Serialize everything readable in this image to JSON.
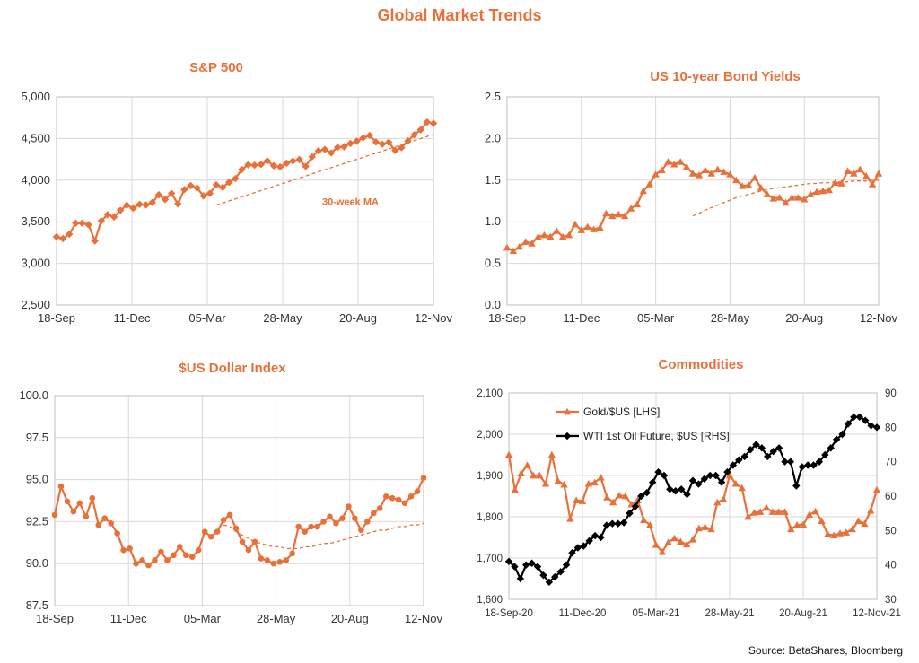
{
  "page": {
    "title": "Global Market Trends",
    "source": "Source: BetaShares, Bloomberg"
  },
  "colors": {
    "orange": "#e8713a",
    "black": "#000000",
    "grid": "#d9d9d9",
    "title": "#e8713a"
  },
  "chart_data": [
    {
      "id": "sp500",
      "type": "line",
      "title": "S&P 500",
      "xlabel": "",
      "ylabel": "",
      "x_ticks": [
        "18-Sep",
        "11-Dec",
        "05-Mar",
        "28-May",
        "20-Aug",
        "12-Nov"
      ],
      "y_ticks": [
        "2,500",
        "3,000",
        "3,500",
        "4,000",
        "4,500",
        "5,000"
      ],
      "ylim": [
        2500,
        5000
      ],
      "grid": true,
      "series": [
        {
          "marker": "diamond",
          "color": "#e8713a",
          "values": [
            3319,
            3298,
            3351,
            3483,
            3483,
            3465,
            3270,
            3510,
            3585,
            3557,
            3638,
            3699,
            3663,
            3709,
            3702,
            3732,
            3824,
            3768,
            3841,
            3714,
            3887,
            3934,
            3906,
            3811,
            3841,
            3943,
            3913,
            3974,
            4019,
            4128,
            4185,
            4180,
            4188,
            4232,
            4173,
            4159,
            4204,
            4230,
            4247,
            4166,
            4280,
            4352,
            4369,
            4327,
            4395,
            4402,
            4441,
            4468,
            4509,
            4537,
            4458,
            4432,
            4455,
            4357,
            4391,
            4471,
            4545,
            4605,
            4697,
            4682
          ]
        },
        {
          "style": "dashed",
          "color": "#e8713a",
          "start_index": 25,
          "values": [
            3700,
            3725,
            3750,
            3775,
            3800,
            3825,
            3850,
            3875,
            3900,
            3925,
            3950,
            3975,
            4000,
            4025,
            4050,
            4075,
            4100,
            4125,
            4150,
            4175,
            4200,
            4225,
            4250,
            4275,
            4300,
            4325,
            4350,
            4375,
            4400,
            4425,
            4450,
            4475,
            4500,
            4525,
            4550
          ]
        }
      ],
      "annotations": [
        {
          "text": "30-week MA",
          "x_index": 46,
          "y": 3700
        }
      ]
    },
    {
      "id": "us10y",
      "type": "line",
      "title": "US 10-year Bond Yields",
      "xlabel": "",
      "ylabel": "",
      "x_ticks": [
        "18-Sep",
        "11-Dec",
        "05-Mar",
        "28-May",
        "20-Aug",
        "12-Nov"
      ],
      "y_ticks": [
        "0.0",
        "0.5",
        "1.0",
        "1.5",
        "2.0",
        "2.5"
      ],
      "ylim": [
        0,
        2.5
      ],
      "grid": true,
      "series": [
        {
          "marker": "triangle",
          "color": "#e8713a",
          "values": [
            0.69,
            0.65,
            0.7,
            0.76,
            0.74,
            0.82,
            0.84,
            0.82,
            0.89,
            0.82,
            0.84,
            0.97,
            0.9,
            0.94,
            0.91,
            0.93,
            1.1,
            1.07,
            1.09,
            1.07,
            1.16,
            1.21,
            1.37,
            1.45,
            1.57,
            1.62,
            1.72,
            1.69,
            1.72,
            1.66,
            1.58,
            1.56,
            1.62,
            1.58,
            1.63,
            1.6,
            1.57,
            1.5,
            1.43,
            1.44,
            1.53,
            1.41,
            1.33,
            1.28,
            1.29,
            1.23,
            1.29,
            1.29,
            1.27,
            1.33,
            1.36,
            1.37,
            1.38,
            1.47,
            1.46,
            1.61,
            1.58,
            1.63,
            1.55,
            1.45,
            1.58
          ]
        },
        {
          "style": "dashed",
          "color": "#e8713a",
          "start_index": 30,
          "values": [
            1.07,
            1.1,
            1.14,
            1.17,
            1.2,
            1.23,
            1.26,
            1.29,
            1.31,
            1.33,
            1.35,
            1.37,
            1.39,
            1.4,
            1.41,
            1.42,
            1.43,
            1.44,
            1.45,
            1.46,
            1.46,
            1.47,
            1.47,
            1.48,
            1.48,
            1.48,
            1.49,
            1.49,
            1.49,
            1.5,
            1.5
          ]
        }
      ]
    },
    {
      "id": "usd-index",
      "type": "line",
      "title": "$US Dollar Index",
      "xlabel": "",
      "ylabel": "",
      "x_ticks": [
        "18-Sep",
        "11-Dec",
        "05-Mar",
        "28-May",
        "20-Aug",
        "12-Nov"
      ],
      "y_ticks": [
        "87.5",
        "90.0",
        "92.5",
        "95.0",
        "97.5",
        "100.0"
      ],
      "ylim": [
        87.5,
        100
      ],
      "grid": true,
      "series": [
        {
          "marker": "circle",
          "color": "#e8713a",
          "values": [
            92.9,
            94.6,
            93.7,
            93.1,
            93.6,
            92.8,
            93.9,
            92.3,
            92.7,
            92.4,
            91.8,
            90.8,
            90.9,
            90.0,
            90.2,
            89.9,
            90.2,
            90.7,
            90.2,
            90.5,
            91.0,
            90.5,
            90.4,
            90.8,
            91.9,
            91.6,
            91.9,
            92.6,
            92.9,
            92.1,
            91.3,
            90.8,
            91.3,
            90.3,
            90.2,
            90.0,
            90.1,
            90.2,
            90.6,
            92.2,
            91.9,
            92.2,
            92.2,
            92.5,
            92.8,
            92.4,
            92.7,
            93.4,
            92.7,
            92.0,
            92.5,
            93.0,
            93.3,
            94.0,
            93.9,
            93.8,
            93.6,
            94.0,
            94.3,
            95.1
          ]
        },
        {
          "style": "dashed",
          "color": "#e8713a",
          "start_index": 27,
          "values": [
            92.3,
            92.2,
            91.9,
            91.7,
            91.5,
            91.3,
            91.2,
            91.1,
            91.0,
            91.0,
            90.9,
            90.9,
            90.9,
            91.0,
            91.0,
            91.1,
            91.2,
            91.2,
            91.3,
            91.4,
            91.5,
            91.6,
            91.7,
            91.8,
            91.9,
            92.0,
            92.0,
            92.1,
            92.2,
            92.2,
            92.3,
            92.3,
            92.4
          ]
        }
      ]
    },
    {
      "id": "commodities",
      "type": "line",
      "title": "Commodities",
      "xlabel": "",
      "ylabel": "",
      "x_ticks": [
        "18-Sep-20",
        "11-Dec-20",
        "05-Mar-21",
        "28-May-21",
        "20-Aug-21",
        "12-Nov-21"
      ],
      "y_ticks_left": [
        "1,600",
        "1,700",
        "1,800",
        "1,900",
        "2,000",
        "2,100"
      ],
      "y_ticks_right": [
        "30",
        "40",
        "50",
        "60",
        "70",
        "80",
        "90"
      ],
      "ylim_left": [
        1600,
        2100
      ],
      "ylim_right": [
        30,
        90
      ],
      "legend_placement": "top-left",
      "series": [
        {
          "name": "Gold/$US [LHS]",
          "axis": "left",
          "marker": "triangle",
          "color": "#e8713a",
          "values": [
            1950,
            1865,
            1905,
            1925,
            1900,
            1900,
            1880,
            1950,
            1887,
            1878,
            1795,
            1840,
            1838,
            1880,
            1883,
            1895,
            1847,
            1835,
            1852,
            1850,
            1830,
            1840,
            1792,
            1780,
            1732,
            1715,
            1738,
            1748,
            1740,
            1733,
            1745,
            1772,
            1775,
            1770,
            1835,
            1842,
            1900,
            1880,
            1870,
            1800,
            1810,
            1812,
            1822,
            1812,
            1812,
            1812,
            1770,
            1780,
            1781,
            1805,
            1813,
            1790,
            1758,
            1755,
            1760,
            1762,
            1770,
            1790,
            1783,
            1815,
            1865
          ]
        },
        {
          "name": "WTI 1st Oil Future, $US [RHS]",
          "axis": "right",
          "marker": "diamond",
          "color": "#000000",
          "values": [
            41,
            39.5,
            36,
            40,
            40.5,
            39.5,
            37,
            35,
            36.5,
            38,
            40,
            43.5,
            45,
            45.5,
            47,
            48.5,
            48,
            51.5,
            52,
            52,
            52.3,
            55,
            57,
            60,
            61,
            64,
            67,
            66,
            62,
            61.5,
            62,
            60.5,
            64.5,
            63.5,
            65,
            66,
            66,
            64,
            67,
            69,
            70.5,
            71.5,
            73.5,
            75,
            74,
            71.5,
            73,
            74,
            70,
            70,
            63,
            68.5,
            69,
            69,
            70,
            72,
            74,
            76.5,
            78,
            81,
            83,
            83,
            82,
            80.5,
            80
          ]
        }
      ]
    }
  ]
}
